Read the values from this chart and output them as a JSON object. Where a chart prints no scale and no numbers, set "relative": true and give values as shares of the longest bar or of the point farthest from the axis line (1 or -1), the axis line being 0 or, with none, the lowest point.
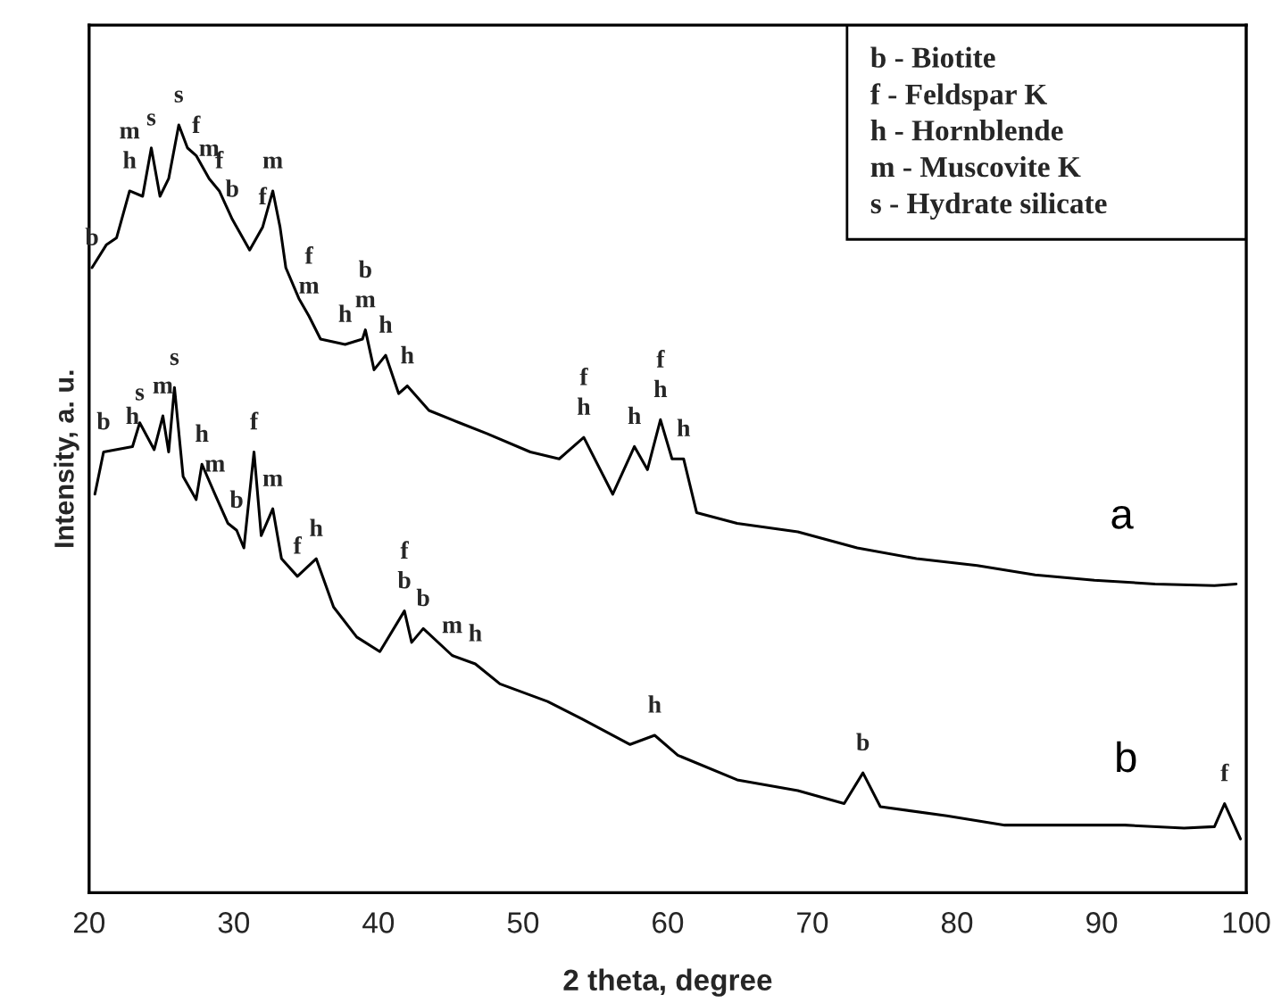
{
  "chart_data": {
    "type": "line",
    "xlabel": "2 theta, degree",
    "ylabel": "Intensity, a. u.",
    "relative": true,
    "xlim": [
      20,
      100
    ],
    "xticks": [
      20,
      30,
      40,
      50,
      60,
      70,
      80,
      90,
      100
    ],
    "tick_labels": "x",
    "grid": false,
    "legend": false,
    "marker": "none",
    "line_style": "solid",
    "series": [
      {
        "name": "a",
        "color": "#000000",
        "x": [
          20.2,
          21.2,
          21.9,
          22.8,
          23.7,
          24.3,
          24.9,
          25.5,
          26.2,
          26.8,
          27.4,
          28.3,
          29.0,
          29.9,
          31.1,
          32.0,
          32.7,
          33.2,
          33.6,
          34.5,
          35.2,
          36.0,
          37.7,
          38.9,
          39.1,
          39.7,
          40.5,
          41.4,
          42.0,
          43.5,
          45.6,
          47.5,
          50.5,
          52.5,
          54.2,
          56.2,
          57.7,
          58.6,
          59.5,
          60.3,
          61.1,
          62.0,
          64.8,
          69.0,
          73.1,
          77.2,
          81.4,
          85.4,
          89.5,
          93.7,
          97.8,
          99.3
        ],
        "values": [
          0.814,
          0.844,
          0.853,
          0.914,
          0.907,
          0.97,
          0.907,
          0.93,
          1.0,
          0.97,
          0.96,
          0.93,
          0.914,
          0.877,
          0.837,
          0.867,
          0.914,
          0.867,
          0.814,
          0.774,
          0.751,
          0.721,
          0.714,
          0.721,
          0.733,
          0.681,
          0.7,
          0.65,
          0.66,
          0.628,
          0.612,
          0.598,
          0.574,
          0.565,
          0.593,
          0.519,
          0.581,
          0.551,
          0.616,
          0.565,
          0.565,
          0.495,
          0.481,
          0.47,
          0.449,
          0.435,
          0.426,
          0.414,
          0.407,
          0.402,
          0.4,
          0.402
        ]
      },
      {
        "name": "b",
        "color": "#000000",
        "x": [
          20.4,
          21.0,
          23.0,
          23.5,
          24.5,
          25.1,
          25.5,
          25.9,
          26.5,
          27.4,
          27.8,
          28.7,
          29.6,
          30.2,
          30.7,
          31.4,
          31.9,
          32.7,
          33.3,
          34.4,
          35.7,
          36.9,
          38.5,
          40.1,
          41.8,
          42.3,
          43.1,
          45.1,
          46.7,
          48.4,
          51.7,
          54.1,
          57.4,
          59.1,
          60.7,
          64.8,
          69.0,
          72.2,
          73.5,
          74.7,
          79.3,
          83.3,
          87.5,
          91.6,
          95.7,
          97.8,
          98.5,
          99.6
        ],
        "values": [
          0.519,
          0.574,
          0.581,
          0.612,
          0.577,
          0.621,
          0.574,
          0.658,
          0.542,
          0.512,
          0.558,
          0.519,
          0.481,
          0.472,
          0.449,
          0.574,
          0.465,
          0.5,
          0.435,
          0.412,
          0.435,
          0.372,
          0.333,
          0.314,
          0.367,
          0.326,
          0.344,
          0.309,
          0.298,
          0.272,
          0.249,
          0.226,
          0.193,
          0.205,
          0.179,
          0.147,
          0.133,
          0.116,
          0.156,
          0.112,
          0.1,
          0.088,
          0.088,
          0.088,
          0.084,
          0.086,
          0.116,
          0.07
        ]
      }
    ],
    "annotations": [
      "b - Biotite",
      "f - Feldspar K",
      "h - Hornblende",
      "m - Muscovite K",
      "s - Hydrate silicate",
      {
        "text": "b",
        "x": 20.2,
        "y": 0.814
      },
      {
        "text": "h",
        "x": 22.8,
        "y": 0.914
      },
      {
        "text": "m",
        "x": 22.8,
        "y": 0.914
      },
      {
        "text": "s",
        "x": 24.3,
        "y": 0.97
      },
      {
        "text": "s",
        "x": 26.2,
        "y": 1.0
      },
      {
        "text": "f",
        "x": 27.4,
        "y": 0.96
      },
      {
        "text": "m",
        "x": 28.3,
        "y": 0.93
      },
      {
        "text": "f",
        "x": 29.0,
        "y": 0.914
      },
      {
        "text": "b",
        "x": 29.9,
        "y": 0.877
      },
      {
        "text": "f",
        "x": 32.0,
        "y": 0.867
      },
      {
        "text": "m",
        "x": 32.7,
        "y": 0.914
      },
      {
        "text": "m",
        "x": 35.2,
        "y": 0.751
      },
      {
        "text": "f",
        "x": 35.2,
        "y": 0.751
      },
      {
        "text": "h",
        "x": 37.7,
        "y": 0.714
      },
      {
        "text": "m",
        "x": 39.1,
        "y": 0.733
      },
      {
        "text": "b",
        "x": 39.1,
        "y": 0.733
      },
      {
        "text": "h",
        "x": 40.5,
        "y": 0.7
      },
      {
        "text": "h",
        "x": 42.0,
        "y": 0.66
      },
      {
        "text": "h",
        "x": 54.2,
        "y": 0.593
      },
      {
        "text": "f",
        "x": 54.2,
        "y": 0.593
      },
      {
        "text": "h",
        "x": 57.7,
        "y": 0.581
      },
      {
        "text": "h",
        "x": 59.5,
        "y": 0.616
      },
      {
        "text": "f",
        "x": 59.5,
        "y": 0.616
      },
      {
        "text": "h",
        "x": 61.1,
        "y": 0.565
      },
      {
        "text": "b",
        "x": 21.0,
        "y": 0.574
      },
      {
        "text": "h",
        "x": 23.0,
        "y": 0.581
      },
      {
        "text": "s",
        "x": 23.5,
        "y": 0.612
      },
      {
        "text": "m",
        "x": 25.1,
        "y": 0.621
      },
      {
        "text": "s",
        "x": 25.9,
        "y": 0.658
      },
      {
        "text": "h",
        "x": 27.8,
        "y": 0.558
      },
      {
        "text": "m",
        "x": 28.7,
        "y": 0.519
      },
      {
        "text": "b",
        "x": 30.2,
        "y": 0.472
      },
      {
        "text": "f",
        "x": 31.4,
        "y": 0.574
      },
      {
        "text": "m",
        "x": 32.7,
        "y": 0.5
      },
      {
        "text": "f",
        "x": 34.4,
        "y": 0.412
      },
      {
        "text": "h",
        "x": 35.7,
        "y": 0.435
      },
      {
        "text": "b",
        "x": 41.8,
        "y": 0.367
      },
      {
        "text": "f",
        "x": 41.8,
        "y": 0.367
      },
      {
        "text": "b",
        "x": 43.1,
        "y": 0.344
      },
      {
        "text": "m",
        "x": 45.1,
        "y": 0.309
      },
      {
        "text": "h",
        "x": 46.7,
        "y": 0.298
      },
      {
        "text": "h",
        "x": 59.1,
        "y": 0.205
      },
      {
        "text": "b",
        "x": 73.5,
        "y": 0.156
      },
      {
        "text": "f",
        "x": 98.5,
        "y": 0.116
      }
    ]
  }
}
